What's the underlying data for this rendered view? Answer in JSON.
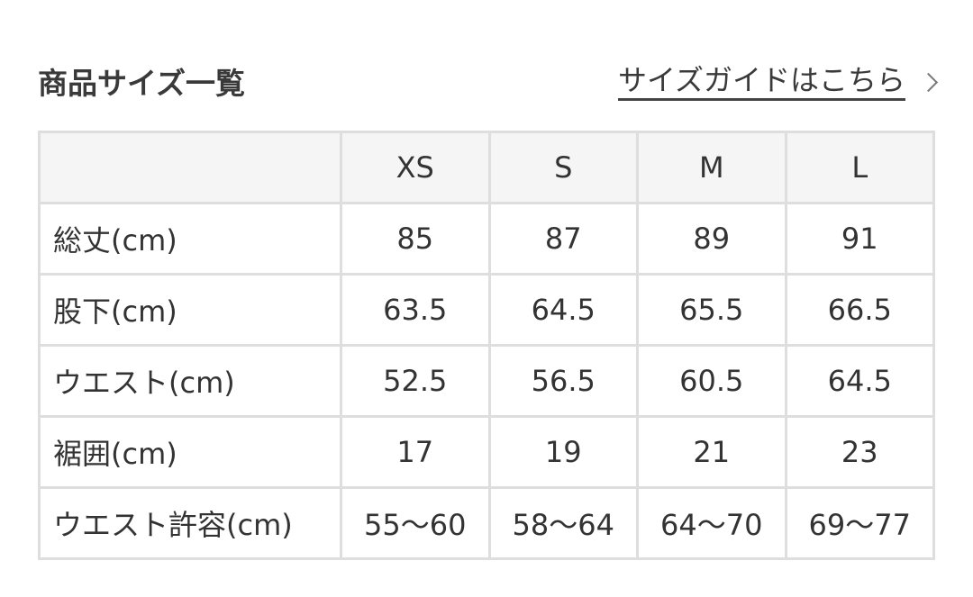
{
  "header": {
    "title": "商品サイズ一覧",
    "guide_link": "サイズガイドはこちら",
    "guide_icon": "chevron-right-icon"
  },
  "table": {
    "columns": [
      "",
      "XS",
      "S",
      "M",
      "L"
    ],
    "rows": [
      {
        "label": "総丈(cm)",
        "values": [
          "85",
          "87",
          "89",
          "91"
        ]
      },
      {
        "label": "股下(cm)",
        "values": [
          "63.5",
          "64.5",
          "65.5",
          "66.5"
        ]
      },
      {
        "label": "ウエスト(cm)",
        "values": [
          "52.5",
          "56.5",
          "60.5",
          "64.5"
        ]
      },
      {
        "label": "裾囲(cm)",
        "values": [
          "17",
          "19",
          "21",
          "23"
        ]
      },
      {
        "label": "ウエスト許容(cm)",
        "values": [
          "55〜60",
          "58〜64",
          "64〜70",
          "69〜77"
        ]
      }
    ]
  },
  "colors": {
    "border": "#dedede",
    "header_bg": "#f5f5f5",
    "text": "#333333"
  }
}
